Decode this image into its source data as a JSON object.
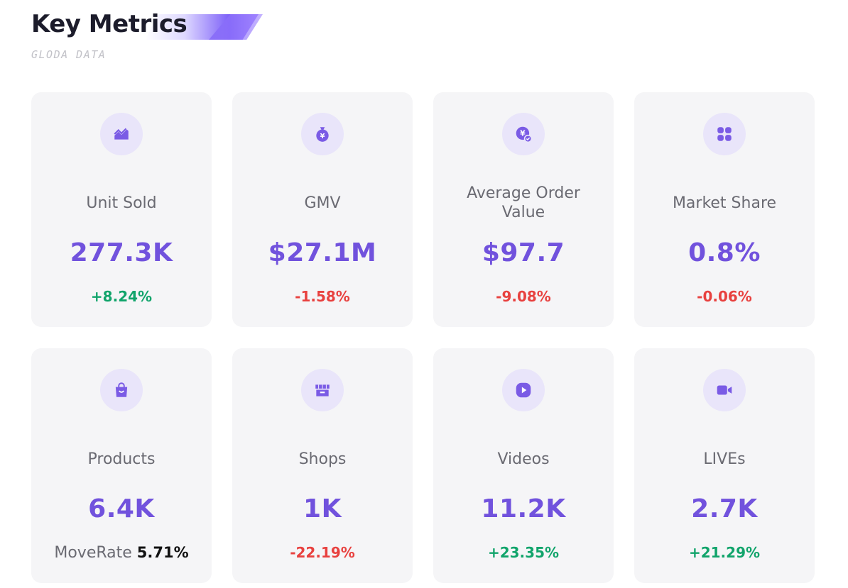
{
  "header": {
    "title": "Key Metrics",
    "subtitle": "GLODA DATA"
  },
  "colors": {
    "accent": "#7152dd",
    "positive": "#11a46b",
    "negative": "#e8413f",
    "card_bg": "#f5f5f7",
    "icon_bg": "#e9e5fa"
  },
  "metrics": [
    {
      "label": "Unit Sold",
      "value": "277.3K",
      "change": "+8.24%",
      "trend": "up",
      "icon": "trend-chart-icon"
    },
    {
      "label": "GMV",
      "value": "$27.1M",
      "change": "-1.58%",
      "trend": "down",
      "icon": "money-bag-icon"
    },
    {
      "label": "Average Order Value",
      "value": "$97.7",
      "change": "-9.08%",
      "trend": "down",
      "icon": "yen-coin-check-icon"
    },
    {
      "label": "Market Share",
      "value": "0.8%",
      "change": "-0.06%",
      "trend": "down",
      "icon": "grid-apps-icon"
    },
    {
      "label": "Products",
      "value": "6.4K",
      "move_rate_label": "MoveRate",
      "move_rate_value": "5.71%",
      "icon": "shopping-bag-icon"
    },
    {
      "label": "Shops",
      "value": "1K",
      "change": "-22.19%",
      "trend": "down",
      "icon": "store-icon"
    },
    {
      "label": "Videos",
      "value": "11.2K",
      "change": "+23.35%",
      "trend": "up",
      "icon": "play-icon"
    },
    {
      "label": "LIVEs",
      "value": "2.7K",
      "change": "+21.29%",
      "trend": "up",
      "icon": "video-camera-icon"
    }
  ]
}
